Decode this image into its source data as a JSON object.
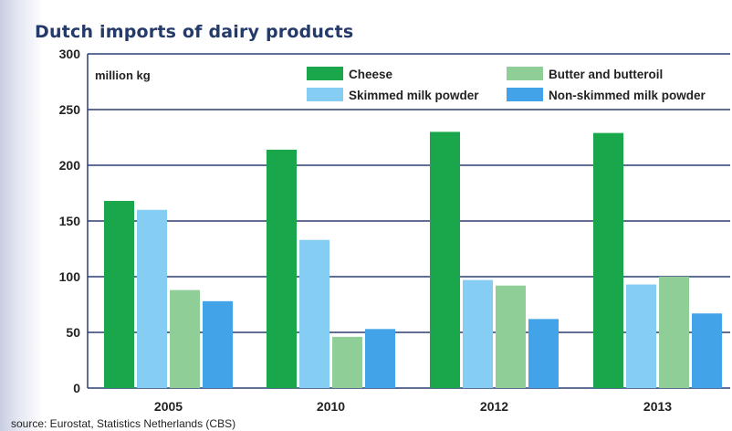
{
  "title": "Dutch imports of dairy products",
  "source": "source: Eurostat, Statistics Netherlands (CBS)",
  "chart_data": {
    "type": "bar",
    "title": "Dutch imports of dairy products",
    "ylabel": "million kg",
    "xlabel": "",
    "categories": [
      "2005",
      "2010",
      "2012",
      "2013"
    ],
    "ylim": [
      0,
      300
    ],
    "yticks": [
      0,
      50,
      100,
      150,
      200,
      250,
      300
    ],
    "grid": true,
    "legend_position": "top",
    "series": [
      {
        "name": "Cheese",
        "color": "#1aa64a",
        "values": [
          168,
          214,
          230,
          229
        ]
      },
      {
        "name": "Skimmed milk powder",
        "color": "#85cdf2",
        "values": [
          160,
          133,
          97,
          93
        ]
      },
      {
        "name": "Butter and butteroil",
        "color": "#8fce96",
        "values": [
          88,
          46,
          92,
          100
        ]
      },
      {
        "name": "Non-skimmed milk powder",
        "color": "#43a3e8",
        "values": [
          78,
          53,
          62,
          67
        ]
      }
    ],
    "legend_order": [
      "Cheese",
      "Butter and butteroil",
      "Skimmed milk powder",
      "Non-skimmed milk powder"
    ]
  }
}
